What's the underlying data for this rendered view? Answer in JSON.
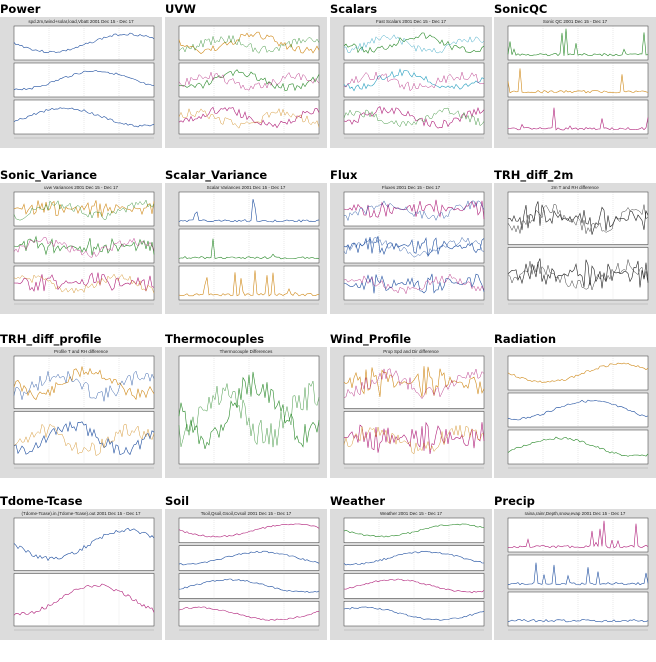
{
  "tiles": [
    {
      "title": "Power",
      "caption": "spd.2m,twind+solar,load,Vbatt 2001 Dec 15 - Dec 17",
      "panels": 3,
      "colors": [
        "#1f4fa0",
        "#1f4fa0",
        "#1f4fa0"
      ],
      "style": "lines"
    },
    {
      "title": "UVW",
      "caption": "",
      "panels": 3,
      "colors": [
        "#d08a1a",
        "#2a8a2a",
        "#b0207a"
      ],
      "style": "multi"
    },
    {
      "title": "Scalars",
      "caption": "Fast Scalars 2001 Dec 15 - Dec 17",
      "panels": 3,
      "colors": [
        "#2a8a2a",
        "#2aa0c0",
        "#b0207a"
      ],
      "style": "multi"
    },
    {
      "title": "SonicQC",
      "caption": "Sonic QC 2001 Dec 15 - Dec 17",
      "panels": 3,
      "colors": [
        "#2a8a2a",
        "#d08a1a",
        "#b0207a"
      ],
      "style": "spikes"
    },
    {
      "title": "Sonic_Variance",
      "caption": "uvw Variances 2001 Dec 15 - Dec 17",
      "panels": 3,
      "colors": [
        "#d08a1a",
        "#2a8a2a",
        "#b0207a"
      ],
      "style": "noisy"
    },
    {
      "title": "Scalar_Variance",
      "caption": "Scalar Variances 2001 Dec 15 - Dec 17",
      "panels": 3,
      "colors": [
        "#1f4fa0",
        "#2a8a2a",
        "#d08a1a"
      ],
      "style": "spikes"
    },
    {
      "title": "Flux",
      "caption": "Fluxes 2001 Dec 15 - Dec 17",
      "panels": 3,
      "colors": [
        "#b0207a",
        "#1f4fa0",
        "#1f4fa0"
      ],
      "style": "noisy"
    },
    {
      "title": "TRH_diff_2m",
      "caption": "2m T and RH difference",
      "panels": 2,
      "colors": [
        "#222222",
        "#222222"
      ],
      "style": "noisy"
    },
    {
      "title": "TRH_diff_profile",
      "caption": "Profile T and RH difference",
      "panels": 2,
      "colors": [
        "#d08a1a",
        "#1f4fa0"
      ],
      "style": "multi"
    },
    {
      "title": "Thermocouples",
      "caption": "Thermocouple Differences",
      "panels": 1,
      "colors": [
        "#2a8a2a"
      ],
      "style": "multi"
    },
    {
      "title": "Wind_Profile",
      "caption": "Prop Spd and Dir difference",
      "panels": 2,
      "colors": [
        "#d08a1a",
        "#b0207a"
      ],
      "style": "noisy"
    },
    {
      "title": "Radiation",
      "caption": "",
      "panels": 3,
      "colors": [
        "#d08a1a",
        "#1f4fa0",
        "#2a8a2a"
      ],
      "style": "lines"
    },
    {
      "title": "Tdome-Tcase",
      "caption": "(Tdome-Tcase).in,(Tdome-Tcase).out 2001 Dec 15 - Dec 17",
      "panels": 2,
      "colors": [
        "#1f4fa0",
        "#b0207a"
      ],
      "style": "lines"
    },
    {
      "title": "Soil",
      "caption": "Tsoil,Qsoil,Gsoil,Cvsoil 2001 Dec 15 - Dec 17",
      "panels": 4,
      "colors": [
        "#b0207a",
        "#1f4fa0",
        "#1f4fa0",
        "#b0207a"
      ],
      "style": "lines"
    },
    {
      "title": "Weather",
      "caption": "Weather 2001 Dec 15 - Dec 17",
      "panels": 4,
      "colors": [
        "#2a8a2a",
        "#1f4fa0",
        "#b0207a",
        "#1f4fa0"
      ],
      "style": "lines"
    },
    {
      "title": "Precip",
      "caption": "raina,rainr,Depth,snow,evap 2001 Dec 15 - Dec 17",
      "panels": 3,
      "colors": [
        "#b0207a",
        "#1f4fa0",
        "#1f4fa0"
      ],
      "style": "spikes"
    }
  ]
}
